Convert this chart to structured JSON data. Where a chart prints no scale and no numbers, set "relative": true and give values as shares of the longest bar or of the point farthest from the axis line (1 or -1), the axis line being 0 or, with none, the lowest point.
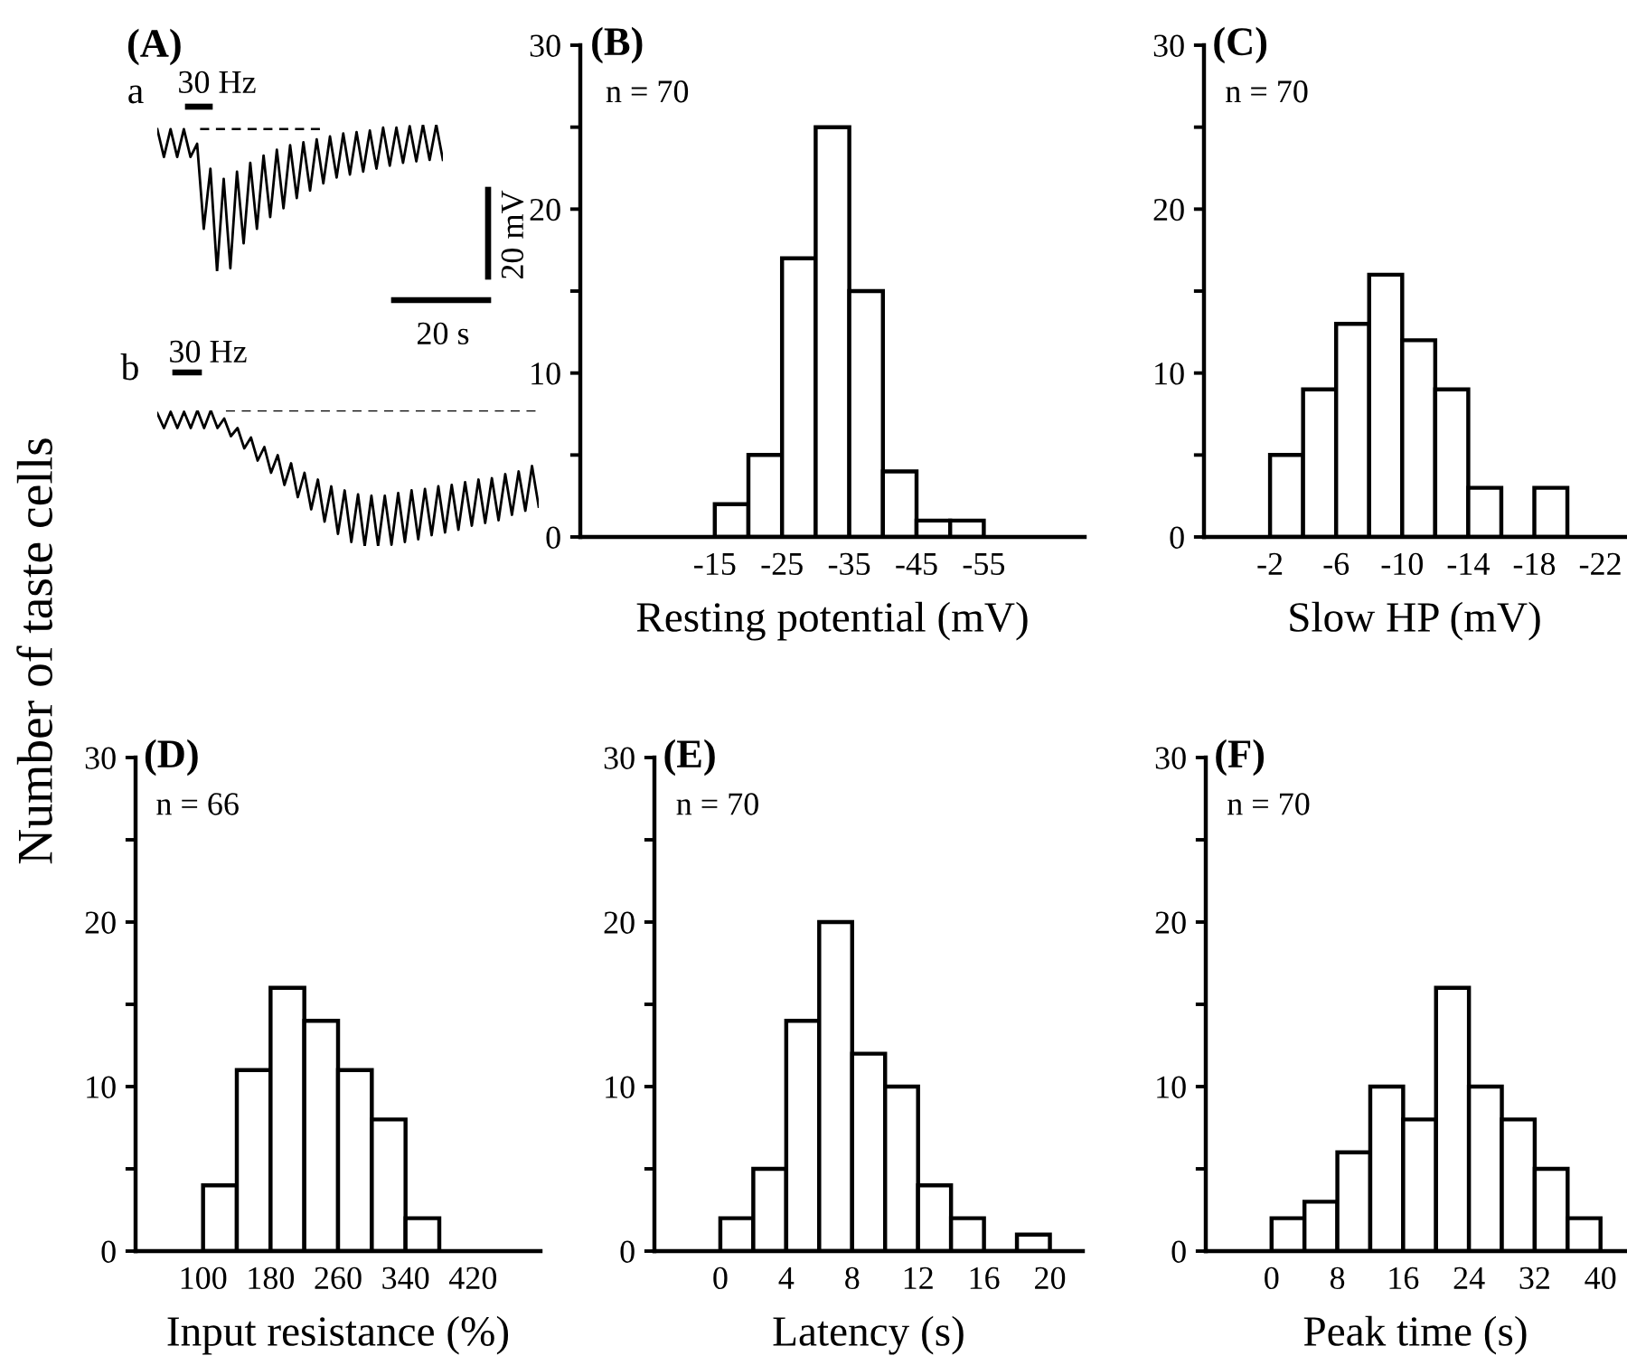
{
  "chart_data": [
    {
      "type": "line",
      "title": "(A)",
      "relative": true,
      "categories": [
        null,
        null,
        null,
        null,
        null,
        null,
        null,
        null,
        null,
        null,
        null,
        null,
        null,
        null,
        null,
        null,
        null,
        null,
        null,
        null,
        null,
        null,
        null,
        null,
        null,
        null,
        null,
        null,
        null,
        null,
        null,
        null,
        null,
        null,
        null,
        null,
        null,
        null,
        null,
        null,
        null,
        null,
        null,
        null
      ],
      "series": [
        {
          "name": "a",
          "color": "#000000",
          "values": [
            0.97,
            0.78,
            0.97,
            0.78,
            0.97,
            0.78,
            0.87,
            0.29,
            0.7,
            0,
            0.63,
            0.02,
            0.68,
            0.19,
            0.74,
            0.29,
            0.79,
            0.37,
            0.83,
            0.43,
            0.86,
            0.5,
            0.88,
            0.55,
            0.9,
            0.6,
            0.92,
            0.64,
            0.94,
            0.66,
            0.95,
            0.68,
            0.96,
            0.7,
            0.98,
            0.72,
            0.98,
            0.74,
            0.99,
            0.75,
            1.0,
            0.76,
            1.0,
            0.76
          ]
        }
      ],
      "ref_lines": [
        {
          "axis": "y",
          "value": 0.97,
          "color": "#000000",
          "line_style": "dashed"
        }
      ],
      "annotations": [
        "30 Hz",
        "20 mV",
        "20 s"
      ]
    },
    {
      "type": "line",
      "relative": true,
      "categories": [
        null,
        null,
        null,
        null,
        null,
        null,
        null,
        null,
        null,
        null,
        null,
        null,
        null,
        null,
        null,
        null,
        null,
        null,
        null,
        null,
        null,
        null,
        null,
        null,
        null,
        null,
        null,
        null,
        null,
        null,
        null,
        null,
        null,
        null,
        null,
        null,
        null,
        null,
        null,
        null,
        null,
        null,
        null,
        null,
        null,
        null,
        null,
        null,
        null,
        null,
        null,
        null,
        null,
        null,
        null,
        null,
        null,
        null
      ],
      "series": [
        {
          "name": "b",
          "color": "#000000",
          "values": [
            0.98,
            0.87,
            0.99,
            0.87,
            0.99,
            0.87,
            1.0,
            0.87,
            1.0,
            0.87,
            0.94,
            0.81,
            0.87,
            0.72,
            0.8,
            0.63,
            0.73,
            0.54,
            0.67,
            0.45,
            0.61,
            0.36,
            0.54,
            0.27,
            0.49,
            0.18,
            0.44,
            0.09,
            0.41,
            0.03,
            0.38,
            0,
            0.37,
            0,
            0.37,
            0.01,
            0.39,
            0.03,
            0.41,
            0.05,
            0.42,
            0.08,
            0.44,
            0.1,
            0.45,
            0.12,
            0.47,
            0.15,
            0.49,
            0.17,
            0.5,
            0.19,
            0.53,
            0.23,
            0.55,
            0.26,
            0.59,
            0.29
          ]
        }
      ],
      "ref_lines": [
        {
          "axis": "y",
          "value": 1.0,
          "color": "#000000",
          "line_style": "dashed"
        }
      ],
      "annotations": [
        "30 Hz"
      ]
    },
    {
      "type": "histogram",
      "title": "(B)",
      "xlabel": "Resting potential (mV)",
      "color": "#ffffff",
      "bins": [
        -15,
        -20,
        -25,
        -30,
        -35,
        -40,
        -45,
        -50,
        -55
      ],
      "values": [
        2,
        5,
        17,
        25,
        15,
        4,
        1,
        1
      ],
      "xlim": [
        5,
        -70
      ],
      "xticks": [
        -15,
        -25,
        -35,
        -45,
        -55
      ],
      "ylim": [
        0,
        30
      ],
      "yticks": [
        0,
        {
          "value": 5,
          "label": null
        },
        10,
        {
          "value": 15,
          "label": null
        },
        20,
        {
          "value": 25,
          "label": null
        },
        30
      ],
      "annotations": [
        "n = 70"
      ]
    },
    {
      "type": "histogram",
      "title": "(C)",
      "xlabel": "Slow HP (mV)",
      "color": "#ffffff",
      "bins": [
        -2,
        -4,
        -6,
        -8,
        -10,
        -12,
        -14,
        -16,
        -18,
        -20
      ],
      "values": [
        5,
        9,
        13,
        16,
        12,
        9,
        3,
        0,
        3
      ],
      "xlim": [
        2,
        -23.5
      ],
      "xticks": [
        -2,
        -6,
        -10,
        -14,
        -18,
        -22
      ],
      "ylim": [
        0,
        30
      ],
      "yticks": [
        0,
        {
          "value": 5,
          "label": null
        },
        10,
        {
          "value": 15,
          "label": null
        },
        20,
        {
          "value": 25,
          "label": null
        },
        30
      ],
      "annotations": [
        "n = 70"
      ]
    },
    {
      "type": "histogram",
      "title": "(D)",
      "xlabel": "Input resistance (%)",
      "ylabel": "Number of taste cells",
      "color": "#ffffff",
      "bins": [
        100,
        140,
        180,
        220,
        260,
        300,
        340,
        380
      ],
      "values": [
        4,
        11,
        16,
        14,
        11,
        8,
        2
      ],
      "xlim": [
        20,
        500
      ],
      "xticks": [
        100,
        180,
        260,
        340,
        420
      ],
      "ylim": [
        0,
        30
      ],
      "yticks": [
        0,
        {
          "value": 5,
          "label": null
        },
        10,
        {
          "value": 15,
          "label": null
        },
        20,
        {
          "value": 25,
          "label": null
        },
        30
      ],
      "annotations": [
        "n = 66"
      ]
    },
    {
      "type": "histogram",
      "title": "(E)",
      "xlabel": "Latency (s)",
      "color": "#ffffff",
      "bins": [
        0,
        2,
        4,
        6,
        8,
        10,
        12,
        14,
        16,
        18,
        20
      ],
      "values": [
        2,
        5,
        14,
        20,
        12,
        10,
        4,
        2,
        0,
        1
      ],
      "xlim": [
        -4,
        22
      ],
      "xticks": [
        0,
        4,
        8,
        12,
        16,
        20
      ],
      "ylim": [
        0,
        30
      ],
      "yticks": [
        0,
        {
          "value": 5,
          "label": null
        },
        10,
        {
          "value": 15,
          "label": null
        },
        20,
        {
          "value": 25,
          "label": null
        },
        30
      ],
      "annotations": [
        "n = 70"
      ]
    },
    {
      "type": "histogram",
      "title": "(F)",
      "xlabel": "Peak time (s)",
      "color": "#ffffff",
      "bins": [
        0,
        4,
        8,
        12,
        16,
        20,
        24,
        28,
        32,
        36,
        40
      ],
      "values": [
        2,
        3,
        6,
        10,
        8,
        16,
        10,
        8,
        5,
        2
      ],
      "xlim": [
        -8,
        43
      ],
      "xticks": [
        0,
        8,
        16,
        24,
        32,
        40
      ],
      "ylim": [
        0,
        30
      ],
      "yticks": [
        0,
        {
          "value": 5,
          "label": null
        },
        10,
        {
          "value": 15,
          "label": null
        },
        20,
        {
          "value": 25,
          "label": null
        },
        30
      ],
      "annotations": [
        "n = 70"
      ]
    }
  ]
}
